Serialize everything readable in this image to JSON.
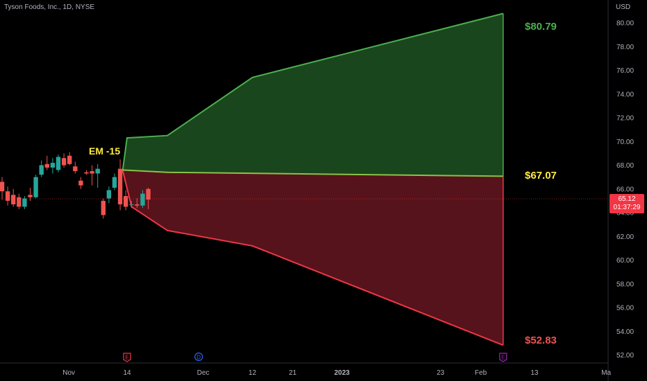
{
  "header": {
    "symbol_title": "Tyson Foods, Inc., 1D, NYSE",
    "currency": "USD"
  },
  "last_price": {
    "value": "65.12",
    "countdown": "01:37:29"
  },
  "annotations": {
    "em_label": "EM -15",
    "upper_label": "$80.79",
    "mid_label": "$67.07",
    "lower_label": "$52.83"
  },
  "colors": {
    "background": "#000000",
    "up_candle": "#26a69a",
    "down_candle": "#ef5350",
    "upper_fill": "#1b4a1f",
    "upper_line": "#4caf50",
    "lower_fill": "#5c141c",
    "lower_line": "#f23645",
    "mid_line": "#8bc34a",
    "em_text": "#ffeb3b",
    "axis_text": "#b2b5be"
  },
  "chart_data": {
    "type": "line",
    "title": "Tyson Foods, Inc., 1D, NYSE",
    "ylabel": "USD",
    "ylim": [
      51.5,
      81.5
    ],
    "y_ticks": [
      "52.00",
      "54.00",
      "56.00",
      "58.00",
      "60.00",
      "62.00",
      "64.00",
      "66.00",
      "68.00",
      "70.00",
      "72.00",
      "74.00",
      "76.00",
      "78.00",
      "80.00"
    ],
    "x_ticks": [
      "Nov",
      "14",
      "Dec",
      "12",
      "21",
      "2023",
      "23",
      "Feb",
      "13",
      "Ma"
    ],
    "event_markers": [
      {
        "label": "E",
        "color": "#f23645",
        "date": "2022-11-14"
      },
      {
        "label": "D",
        "color": "#2962ff",
        "date": "2022-11-30"
      },
      {
        "label": "E",
        "color": "#9c27b0",
        "date": "2023-02-06"
      }
    ],
    "candles": [
      {
        "o": 66.6,
        "h": 67.0,
        "l": 65.1,
        "c": 65.8
      },
      {
        "o": 65.8,
        "h": 66.2,
        "l": 64.6,
        "c": 65.0
      },
      {
        "o": 65.5,
        "h": 66.0,
        "l": 64.5,
        "c": 64.7
      },
      {
        "o": 65.3,
        "h": 65.6,
        "l": 64.3,
        "c": 64.5
      },
      {
        "o": 64.5,
        "h": 65.4,
        "l": 64.3,
        "c": 65.2
      },
      {
        "o": 65.5,
        "h": 66.1,
        "l": 65.0,
        "c": 65.3
      },
      {
        "o": 65.3,
        "h": 67.2,
        "l": 65.2,
        "c": 67.0
      },
      {
        "o": 67.2,
        "h": 68.4,
        "l": 67.0,
        "c": 68.0
      },
      {
        "o": 68.1,
        "h": 68.8,
        "l": 67.6,
        "c": 67.8
      },
      {
        "o": 67.8,
        "h": 68.6,
        "l": 67.3,
        "c": 68.2
      },
      {
        "o": 67.6,
        "h": 68.9,
        "l": 67.4,
        "c": 68.7
      },
      {
        "o": 68.6,
        "h": 69.0,
        "l": 67.8,
        "c": 68.0
      },
      {
        "o": 68.8,
        "h": 69.1,
        "l": 68.0,
        "c": 68.1
      },
      {
        "o": 67.9,
        "h": 68.3,
        "l": 67.3,
        "c": 67.5
      },
      {
        "o": 66.7,
        "h": 67.0,
        "l": 66.0,
        "c": 66.3
      },
      {
        "o": 67.4,
        "h": 67.6,
        "l": 67.2,
        "c": 67.3
      },
      {
        "o": 67.5,
        "h": 68.0,
        "l": 66.3,
        "c": 67.3
      },
      {
        "o": 67.3,
        "h": 68.1,
        "l": 66.1,
        "c": 67.7
      },
      {
        "o": 65.0,
        "h": 65.2,
        "l": 63.5,
        "c": 63.8
      },
      {
        "o": 65.2,
        "h": 66.2,
        "l": 64.8,
        "c": 65.9
      },
      {
        "o": 66.1,
        "h": 67.3,
        "l": 65.9,
        "c": 67.0
      },
      {
        "o": 67.7,
        "h": 68.5,
        "l": 64.2,
        "c": 64.7
      },
      {
        "o": 65.4,
        "h": 65.9,
        "l": 64.2,
        "c": 64.5
      },
      {
        "o": 64.7,
        "h": 65.0,
        "l": 64.4,
        "c": 64.7
      },
      {
        "o": 64.7,
        "h": 65.2,
        "l": 64.4,
        "c": 64.6
      },
      {
        "o": 64.6,
        "h": 65.9,
        "l": 64.4,
        "c": 65.6
      },
      {
        "o": 66.0,
        "h": 66.1,
        "l": 64.3,
        "c": 65.1
      }
    ],
    "expected_move": {
      "upper": [
        {
          "date": "2022-11-13",
          "value": 67.5
        },
        {
          "date": "2022-11-14",
          "value": 70.3
        },
        {
          "date": "2022-11-23",
          "value": 70.5
        },
        {
          "date": "2022-12-12",
          "value": 75.4
        },
        {
          "date": "2023-02-06",
          "value": 80.79
        }
      ],
      "mid": [
        {
          "date": "2022-11-13",
          "value": 67.6
        },
        {
          "date": "2022-11-23",
          "value": 67.4
        },
        {
          "date": "2023-02-06",
          "value": 67.07
        }
      ],
      "lower": [
        {
          "date": "2022-11-13",
          "value": 67.6
        },
        {
          "date": "2022-11-15",
          "value": 64.5
        },
        {
          "date": "2022-11-23",
          "value": 62.5
        },
        {
          "date": "2022-12-12",
          "value": 61.2
        },
        {
          "date": "2023-02-06",
          "value": 52.83
        }
      ]
    }
  }
}
